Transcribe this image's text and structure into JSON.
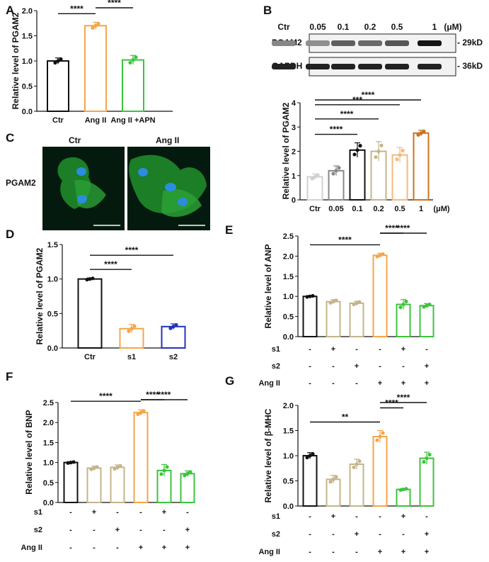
{
  "colors": {
    "black": "#111111",
    "orange": "#f5a54a",
    "green": "#3cc43c",
    "tan": "#c4b48a",
    "blue": "#2233bb",
    "b_ctr": "#d0d0d0",
    "b_005": "#888888",
    "b_01": "#111111",
    "b_02": "#c4b48a",
    "b_05": "#f5b87a",
    "b_1": "#c87420",
    "cell_bg": "#051a0e"
  },
  "panels": {
    "A": "A",
    "B": "B",
    "C": "C",
    "D": "D",
    "E": "E",
    "F": "F",
    "G": "G"
  },
  "blot": {
    "conc_labels": [
      "Ctr",
      "0.05",
      "0.1",
      "0.2",
      "0.5",
      "1",
      "(μM)"
    ],
    "row1_label": "PGAM2",
    "row1_size": "29kD",
    "row2_label": "GAPDH",
    "row2_size": "36kD",
    "row1_intensity": [
      0.35,
      0.3,
      0.55,
      0.5,
      0.6,
      0.95
    ]
  },
  "images": {
    "row_label": "PGAM2",
    "titles": [
      "Ctr",
      "Ang II"
    ]
  },
  "chart_data": [
    {
      "panel": "A",
      "type": "bar",
      "categories": [
        "Ctr",
        "Ang II",
        "Ang II +APN"
      ],
      "values": [
        1.0,
        1.7,
        1.02
      ],
      "errors": [
        0.06,
        0.07,
        0.09
      ],
      "colors": [
        "black",
        "orange",
        "green"
      ],
      "ylabel": "Relative level of PGAM2",
      "ylim": [
        0,
        2.0
      ],
      "yticks": [
        "0.0",
        "0.5",
        "1.0",
        "1.5",
        "2.0"
      ],
      "sig": [
        {
          "from": 0,
          "to": 1,
          "label": "****"
        },
        {
          "from": 1,
          "to": 2,
          "label": "****"
        }
      ]
    },
    {
      "panel": "B",
      "type": "bar",
      "categories": [
        "Ctr",
        "0.05",
        "0.1",
        "0.2",
        "0.5",
        "1"
      ],
      "unit": "(μM)",
      "values": [
        0.95,
        1.2,
        2.05,
        2.0,
        1.85,
        2.75
      ],
      "errors": [
        0.12,
        0.2,
        0.3,
        0.4,
        0.3,
        0.12
      ],
      "colors": [
        "b_ctr",
        "b_005",
        "b_01",
        "b_02",
        "b_05",
        "b_1"
      ],
      "ylabel": "Relative level of PGAM2",
      "ylim": [
        0,
        4
      ],
      "yticks": [
        "0",
        "1",
        "2",
        "3",
        "4"
      ],
      "sig": [
        {
          "from": 0,
          "to": 2,
          "label": "****"
        },
        {
          "from": 0,
          "to": 3,
          "label": "****"
        },
        {
          "from": 0,
          "to": 4,
          "label": "***"
        },
        {
          "from": 0,
          "to": 5,
          "label": "****"
        }
      ]
    },
    {
      "panel": "D",
      "type": "bar",
      "categories": [
        "Ctr",
        "s1",
        "s2"
      ],
      "values": [
        1.0,
        0.28,
        0.31
      ],
      "errors": [
        0.015,
        0.06,
        0.04
      ],
      "colors": [
        "black",
        "orange",
        "blue"
      ],
      "ylabel": "Relative level of PGAM2",
      "ylim": [
        0,
        1.5
      ],
      "yticks": [
        "0.0",
        "0.5",
        "1.0",
        "1.5"
      ],
      "sig": [
        {
          "from": 0,
          "to": 1,
          "label": "****"
        },
        {
          "from": 0,
          "to": 2,
          "label": "****"
        }
      ]
    },
    {
      "panel": "E",
      "type": "bar",
      "values": [
        1.0,
        0.87,
        0.83,
        2.02,
        0.8,
        0.77
      ],
      "errors": [
        0.02,
        0.05,
        0.05,
        0.05,
        0.12,
        0.05
      ],
      "colors": [
        "black",
        "tan",
        "tan",
        "orange",
        "green",
        "green"
      ],
      "ylabel": "Relative level of ANP",
      "ylim": [
        0,
        2.5
      ],
      "yticks": [
        "0.0",
        "0.5",
        "1.0",
        "1.5",
        "2.0",
        "2.5"
      ],
      "conditions": [
        {
          "label": "s1",
          "marks": [
            "-",
            "+",
            "-",
            "-",
            "+",
            "-"
          ]
        },
        {
          "label": "s2",
          "marks": [
            "-",
            "-",
            "+",
            "-",
            "-",
            "+"
          ]
        },
        {
          "label": "Ang II",
          "marks": [
            "-",
            "-",
            "-",
            "+",
            "+",
            "+"
          ]
        }
      ],
      "sig": [
        {
          "from": 0,
          "to": 3,
          "label": "****"
        },
        {
          "from": 3,
          "to": 4,
          "label": "****"
        },
        {
          "from": 3,
          "to": 5,
          "label": "****"
        }
      ]
    },
    {
      "panel": "F",
      "type": "bar",
      "values": [
        1.0,
        0.86,
        0.88,
        2.25,
        0.8,
        0.72
      ],
      "errors": [
        0.02,
        0.05,
        0.06,
        0.07,
        0.15,
        0.07
      ],
      "colors": [
        "black",
        "tan",
        "tan",
        "orange",
        "green",
        "green"
      ],
      "ylabel": "Relative level of BNP",
      "ylim": [
        0,
        2.5
      ],
      "yticks": [
        "0.0",
        "0.5",
        "1.0",
        "1.5",
        "2.0",
        "2.5"
      ],
      "conditions": [
        {
          "label": "s1",
          "marks": [
            "-",
            "+",
            "-",
            "-",
            "+",
            "-"
          ]
        },
        {
          "label": "s2",
          "marks": [
            "-",
            "-",
            "+",
            "-",
            "-",
            "+"
          ]
        },
        {
          "label": "Ang II",
          "marks": [
            "-",
            "-",
            "-",
            "+",
            "+",
            "+"
          ]
        }
      ],
      "sig": [
        {
          "from": 0,
          "to": 3,
          "label": "****"
        },
        {
          "from": 3,
          "to": 4,
          "label": "****"
        },
        {
          "from": 3,
          "to": 5,
          "label": "****"
        }
      ]
    },
    {
      "panel": "G",
      "type": "bar",
      "values": [
        1.0,
        0.53,
        0.83,
        1.38,
        0.33,
        0.95
      ],
      "errors": [
        0.06,
        0.08,
        0.1,
        0.12,
        0.02,
        0.12
      ],
      "colors": [
        "black",
        "tan",
        "tan",
        "orange",
        "green",
        "green"
      ],
      "ylabel": "Relative level of β-MHC",
      "ylim": [
        0,
        2.0
      ],
      "yticks": [
        "0.0",
        "0.5",
        "1.0",
        "1.5",
        "2.0"
      ],
      "conditions": [
        {
          "label": "s1",
          "marks": [
            "-",
            "+",
            "-",
            "-",
            "+",
            "-"
          ]
        },
        {
          "label": "s2",
          "marks": [
            "-",
            "-",
            "+",
            "-",
            "-",
            "+"
          ]
        },
        {
          "label": "Ang II",
          "marks": [
            "-",
            "-",
            "-",
            "+",
            "+",
            "+"
          ]
        }
      ],
      "sig": [
        {
          "from": 0,
          "to": 3,
          "label": "**"
        },
        {
          "from": 3,
          "to": 4,
          "label": "****"
        },
        {
          "from": 3,
          "to": 5,
          "label": "****"
        }
      ]
    }
  ]
}
